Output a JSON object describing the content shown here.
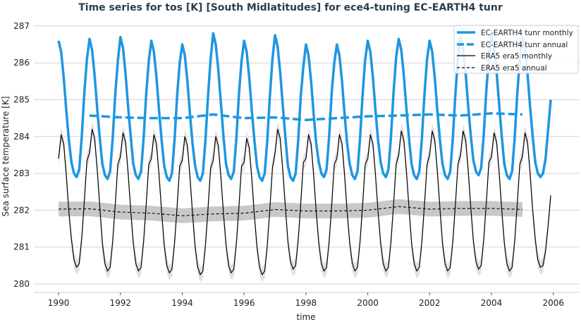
{
  "chart_data": {
    "type": "line",
    "title": "Time series for tos [K] [South Midlatitudes] for ece4-tuning EC-EARTH4 tunr",
    "xlabel": "time",
    "ylabel": "Sea surface temperature [K]",
    "xlim": [
      1989.2,
      2006.85
    ],
    "ylim": [
      279.77,
      287.19
    ],
    "xticks": [
      "1990",
      "1992",
      "1994",
      "1996",
      "1998",
      "2000",
      "2002",
      "2004",
      "2006"
    ],
    "yticks": [
      "280",
      "281",
      "282",
      "283",
      "284",
      "285",
      "286",
      "287"
    ],
    "grid": "horizontal",
    "legend_position": "top-right",
    "colors": {
      "model": "#1f96e0",
      "obs": "#000000",
      "band": "#c8c8c8"
    },
    "monthly_start_year": 1990,
    "series": [
      {
        "name": "EC-EARTH4 tunr monthly",
        "style": "solid-thick",
        "color": "#1f96e0",
        "values_by_year": [
          [
            286.6,
            286.3,
            285.6,
            284.7,
            283.9,
            283.3,
            283.0,
            282.9,
            283.1,
            284.0,
            285.2,
            286.1
          ],
          [
            286.65,
            286.35,
            285.65,
            284.75,
            283.95,
            283.25,
            282.95,
            282.85,
            283.05,
            283.95,
            285.15,
            286.05
          ],
          [
            286.7,
            286.4,
            285.7,
            284.8,
            284.0,
            283.25,
            282.95,
            282.85,
            283.05,
            283.95,
            285.15,
            286.05
          ],
          [
            286.6,
            286.3,
            285.6,
            284.7,
            283.9,
            283.2,
            282.9,
            282.8,
            283.0,
            283.9,
            285.1,
            286.0
          ],
          [
            286.5,
            286.2,
            285.5,
            284.6,
            283.8,
            283.2,
            282.9,
            282.8,
            283.0,
            283.9,
            285.1,
            286.1
          ],
          [
            286.8,
            286.5,
            285.8,
            284.9,
            284.0,
            283.25,
            282.95,
            282.85,
            283.05,
            283.95,
            285.15,
            286.05
          ],
          [
            286.6,
            286.3,
            285.6,
            284.7,
            283.9,
            283.2,
            282.9,
            282.8,
            283.0,
            283.9,
            285.1,
            286.1
          ],
          [
            286.75,
            286.45,
            285.75,
            284.85,
            284.0,
            283.2,
            282.9,
            282.8,
            283.0,
            283.9,
            285.1,
            285.9
          ],
          [
            286.5,
            286.2,
            285.5,
            284.6,
            283.8,
            283.3,
            283.0,
            282.9,
            283.1,
            284.0,
            285.2,
            286.0
          ],
          [
            286.5,
            286.2,
            285.5,
            284.6,
            283.8,
            283.25,
            282.95,
            282.85,
            283.05,
            283.95,
            285.15,
            286.1
          ],
          [
            286.6,
            286.3,
            285.6,
            284.7,
            283.9,
            283.3,
            283.0,
            282.9,
            283.1,
            284.0,
            285.2,
            286.15
          ],
          [
            286.65,
            286.35,
            285.65,
            284.75,
            283.95,
            283.25,
            282.95,
            282.85,
            283.05,
            283.95,
            285.15,
            286.1
          ],
          [
            286.6,
            286.3,
            285.6,
            284.7,
            283.9,
            283.25,
            282.95,
            282.85,
            283.05,
            283.95,
            285.15,
            286.15
          ],
          [
            286.7,
            286.4,
            285.7,
            284.8,
            284.0,
            283.35,
            283.05,
            282.95,
            283.15,
            284.05,
            285.25,
            286.15
          ],
          [
            286.75,
            286.45,
            285.75,
            284.85,
            284.0,
            283.25,
            282.95,
            282.85,
            283.05,
            283.95,
            285.15,
            286.1
          ],
          [
            286.7,
            286.4,
            285.7,
            284.8,
            284.0,
            283.3,
            283.0,
            282.9,
            283.0,
            283.4,
            284.2,
            285.0
          ]
        ]
      },
      {
        "name": "EC-EARTH4 tunr annual",
        "style": "dashed-thick",
        "color": "#1f96e0",
        "x": [
          1991,
          1992,
          1993,
          1994,
          1995,
          1996,
          1997,
          1998,
          1999,
          2000,
          2001,
          2002,
          2003,
          2004,
          2005
        ],
        "values": [
          284.57,
          284.52,
          284.5,
          284.5,
          284.6,
          284.5,
          284.52,
          284.45,
          284.5,
          284.55,
          284.57,
          284.6,
          284.57,
          284.63,
          284.6
        ]
      },
      {
        "name": "ERA5 era5 monthly",
        "style": "solid-thin",
        "color": "#000000",
        "band": 0.2,
        "values_by_year": [
          [
            283.4,
            284.05,
            283.8,
            282.95,
            281.95,
            281.2,
            280.65,
            280.45,
            280.55,
            281.25,
            282.25,
            283.35
          ],
          [
            283.55,
            284.2,
            283.95,
            283.1,
            282.1,
            281.1,
            280.55,
            280.35,
            280.45,
            281.15,
            282.15,
            283.25
          ],
          [
            283.45,
            284.1,
            283.85,
            283.0,
            282.0,
            281.1,
            280.55,
            280.35,
            280.45,
            281.15,
            282.15,
            283.25
          ],
          [
            283.4,
            284.05,
            283.8,
            282.95,
            281.95,
            281.05,
            280.5,
            280.3,
            280.4,
            281.1,
            282.1,
            283.2
          ],
          [
            283.35,
            284.0,
            283.75,
            282.9,
            281.9,
            281.0,
            280.45,
            280.25,
            280.35,
            281.05,
            282.05,
            283.15
          ],
          [
            283.35,
            284.0,
            283.75,
            282.9,
            281.9,
            281.05,
            280.5,
            280.3,
            280.4,
            281.1,
            282.1,
            283.2
          ],
          [
            283.3,
            283.95,
            283.7,
            282.85,
            281.85,
            281.0,
            280.45,
            280.25,
            280.35,
            281.05,
            282.05,
            283.15
          ],
          [
            283.55,
            284.2,
            283.95,
            283.1,
            282.1,
            281.15,
            280.6,
            280.4,
            280.5,
            281.2,
            282.2,
            283.3
          ],
          [
            283.4,
            284.05,
            283.8,
            282.95,
            281.95,
            281.1,
            280.55,
            280.35,
            280.45,
            281.15,
            282.15,
            283.25
          ],
          [
            283.4,
            284.05,
            283.8,
            282.95,
            281.95,
            281.1,
            280.55,
            280.35,
            280.45,
            281.15,
            282.15,
            283.25
          ],
          [
            283.4,
            284.05,
            283.8,
            282.95,
            281.95,
            281.1,
            280.55,
            280.35,
            280.45,
            281.15,
            282.15,
            283.25
          ],
          [
            283.5,
            284.15,
            283.9,
            283.05,
            282.05,
            281.1,
            280.55,
            280.35,
            280.45,
            281.15,
            282.15,
            283.25
          ],
          [
            283.5,
            284.15,
            283.9,
            283.05,
            282.05,
            281.1,
            280.55,
            280.35,
            280.45,
            281.15,
            282.15,
            283.25
          ],
          [
            283.5,
            284.15,
            283.9,
            283.05,
            282.05,
            281.15,
            280.6,
            280.4,
            280.5,
            281.2,
            282.2,
            283.3
          ],
          [
            283.45,
            284.1,
            283.85,
            283.0,
            282.0,
            281.1,
            280.55,
            280.35,
            280.45,
            281.15,
            282.15,
            283.25
          ],
          [
            283.45,
            284.1,
            283.85,
            283.0,
            282.0,
            281.2,
            280.65,
            280.45,
            280.5,
            280.9,
            281.6,
            282.4
          ]
        ]
      },
      {
        "name": "ERA5 era5 annual",
        "style": "dashed-thin",
        "color": "#000000",
        "band": 0.2,
        "x": [
          1990,
          1991,
          1992,
          1993,
          1994,
          1995,
          1996,
          1997,
          1998,
          1999,
          2000,
          2001,
          2002,
          2003,
          2004,
          2005
        ],
        "values": [
          282.03,
          282.04,
          281.95,
          281.92,
          281.85,
          281.9,
          281.92,
          282.02,
          281.98,
          281.98,
          282.0,
          282.1,
          282.03,
          282.05,
          282.05,
          282.02
        ]
      }
    ]
  }
}
